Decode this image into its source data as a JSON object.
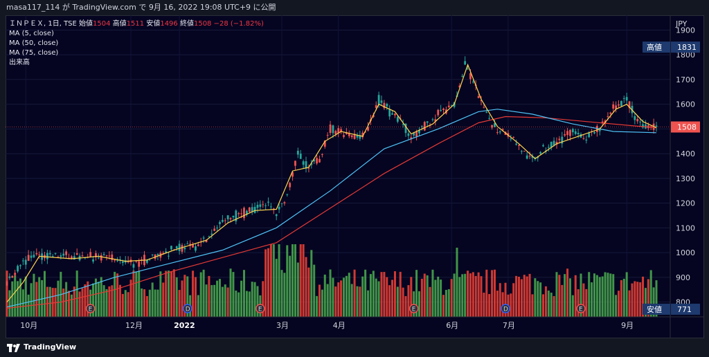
{
  "header": {
    "publish_line": "masa117_114 が TradingView.com で 9月 16, 2022 19:08 UTC+9 に公開"
  },
  "legend": {
    "symbol": "ＩＮＰＥＸ, 1日, TSE",
    "open_label": "始値",
    "open_value": "1504",
    "high_label": "高値",
    "high_value": "1511",
    "low_label": "安値",
    "low_value": "1496",
    "close_label": "終値",
    "close_value": "1508",
    "change": "−28 (−1.82%)",
    "ma5": "MA (5, close)",
    "ma50": "MA (50, close)",
    "ma75": "MA (75, close)",
    "volume": "出来高"
  },
  "footer": {
    "brand": "TradingView"
  },
  "colors": {
    "background": "#050521",
    "up": "#26a69a",
    "down": "#ef5350",
    "volume_up": "#4caf50",
    "volume_down": "#f44336",
    "ma5": "#ffd54f",
    "ma50": "#4fc3f7",
    "ma75": "#e53935",
    "label_bg": "#1e3a6e"
  },
  "chart_data": {
    "type": "candlestick",
    "currency": "JPY",
    "y_ticks": [
      800,
      900,
      1000,
      1100,
      1200,
      1300,
      1400,
      1500,
      1600,
      1700,
      1800,
      1900
    ],
    "ylim": [
      740,
      1960
    ],
    "x_labels": [
      {
        "idx": 7,
        "text": "10月"
      },
      {
        "idx": 46,
        "text": "12月"
      },
      {
        "idx": 64,
        "text": "2022",
        "bold": true
      },
      {
        "idx": 102,
        "text": "3月"
      },
      {
        "idx": 123,
        "text": "4月"
      },
      {
        "idx": 165,
        "text": "6月"
      },
      {
        "idx": 186,
        "text": "7月"
      },
      {
        "idx": 230,
        "text": "9月"
      }
    ],
    "price_label": {
      "value": "1508",
      "price": 1508
    },
    "high_label": {
      "label": "高値",
      "value": "1831",
      "price": 1831
    },
    "low_label": {
      "label": "安値",
      "value": "771",
      "price": 771
    },
    "events": [
      {
        "idx": 31,
        "type": "E"
      },
      {
        "idx": 67,
        "type": "D"
      },
      {
        "idx": 94,
        "type": "E"
      },
      {
        "idx": 151,
        "type": "E"
      },
      {
        "idx": 185,
        "type": "D"
      },
      {
        "idx": 213,
        "type": "E"
      }
    ],
    "keypoints": [
      [
        0,
        880
      ],
      [
        5,
        950
      ],
      [
        10,
        990
      ],
      [
        20,
        985
      ],
      [
        30,
        975
      ],
      [
        36,
        990
      ],
      [
        40,
        975
      ],
      [
        46,
        950
      ],
      [
        52,
        975
      ],
      [
        58,
        1000
      ],
      [
        64,
        1020
      ],
      [
        70,
        1025
      ],
      [
        76,
        1070
      ],
      [
        80,
        1130
      ],
      [
        85,
        1150
      ],
      [
        90,
        1170
      ],
      [
        96,
        1200
      ],
      [
        100,
        1160
      ],
      [
        104,
        1230
      ],
      [
        108,
        1400
      ],
      [
        112,
        1340
      ],
      [
        116,
        1380
      ],
      [
        120,
        1500
      ],
      [
        125,
        1480
      ],
      [
        130,
        1470
      ],
      [
        134,
        1500
      ],
      [
        138,
        1620
      ],
      [
        142,
        1570
      ],
      [
        146,
        1540
      ],
      [
        150,
        1460
      ],
      [
        154,
        1500
      ],
      [
        158,
        1540
      ],
      [
        162,
        1580
      ],
      [
        166,
        1590
      ],
      [
        170,
        1765
      ],
      [
        174,
        1660
      ],
      [
        178,
        1560
      ],
      [
        182,
        1500
      ],
      [
        186,
        1480
      ],
      [
        190,
        1430
      ],
      [
        194,
        1370
      ],
      [
        198,
        1400
      ],
      [
        202,
        1440
      ],
      [
        206,
        1460
      ],
      [
        210,
        1500
      ],
      [
        214,
        1460
      ],
      [
        218,
        1480
      ],
      [
        222,
        1530
      ],
      [
        226,
        1600
      ],
      [
        230,
        1620
      ],
      [
        234,
        1530
      ],
      [
        238,
        1510
      ],
      [
        241,
        1508
      ]
    ],
    "ma5_points": [
      [
        0,
        800
      ],
      [
        6,
        880
      ],
      [
        12,
        985
      ],
      [
        24,
        975
      ],
      [
        34,
        985
      ],
      [
        44,
        965
      ],
      [
        52,
        970
      ],
      [
        62,
        1010
      ],
      [
        74,
        1050
      ],
      [
        82,
        1120
      ],
      [
        92,
        1170
      ],
      [
        100,
        1175
      ],
      [
        106,
        1330
      ],
      [
        112,
        1345
      ],
      [
        118,
        1450
      ],
      [
        124,
        1490
      ],
      [
        132,
        1470
      ],
      [
        138,
        1600
      ],
      [
        144,
        1570
      ],
      [
        150,
        1480
      ],
      [
        158,
        1520
      ],
      [
        166,
        1600
      ],
      [
        171,
        1760
      ],
      [
        176,
        1620
      ],
      [
        182,
        1510
      ],
      [
        190,
        1440
      ],
      [
        196,
        1380
      ],
      [
        204,
        1440
      ],
      [
        212,
        1470
      ],
      [
        220,
        1500
      ],
      [
        226,
        1580
      ],
      [
        230,
        1600
      ],
      [
        236,
        1530
      ],
      [
        241,
        1505
      ]
    ],
    "ma50_points": [
      [
        0,
        780
      ],
      [
        20,
        830
      ],
      [
        40,
        900
      ],
      [
        60,
        955
      ],
      [
        80,
        1010
      ],
      [
        100,
        1100
      ],
      [
        120,
        1250
      ],
      [
        140,
        1420
      ],
      [
        160,
        1500
      ],
      [
        175,
        1570
      ],
      [
        182,
        1580
      ],
      [
        195,
        1560
      ],
      [
        210,
        1520
      ],
      [
        225,
        1490
      ],
      [
        241,
        1485
      ]
    ],
    "ma75_points": [
      [
        0,
        775
      ],
      [
        20,
        800
      ],
      [
        40,
        850
      ],
      [
        60,
        920
      ],
      [
        80,
        980
      ],
      [
        100,
        1040
      ],
      [
        120,
        1180
      ],
      [
        140,
        1320
      ],
      [
        160,
        1440
      ],
      [
        175,
        1525
      ],
      [
        185,
        1550
      ],
      [
        200,
        1545
      ],
      [
        215,
        1530
      ],
      [
        230,
        1515
      ],
      [
        241,
        1505
      ]
    ]
  }
}
